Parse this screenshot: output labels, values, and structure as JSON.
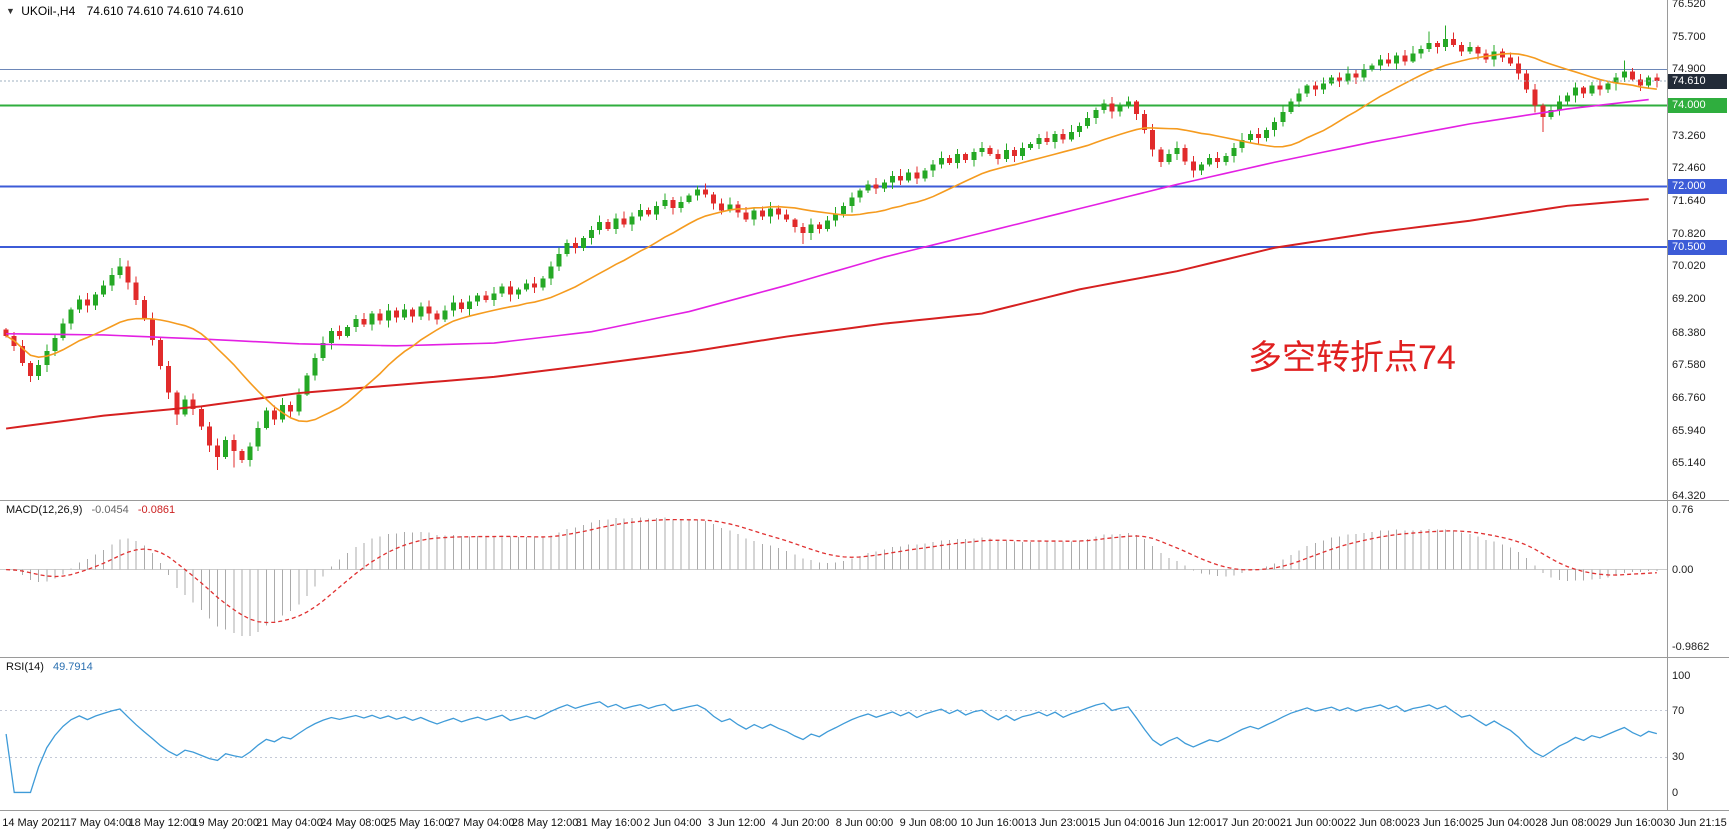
{
  "header": {
    "marker": "▼",
    "title": "UKOil-,H4",
    "ohlc": "74.610 74.610 74.610 74.610"
  },
  "annotation": {
    "text": "多空转折点74",
    "color": "#e02020"
  },
  "chart_data": {
    "type": "candlestick",
    "symbol": "UKOil-",
    "timeframe": "H4",
    "title": "UKOil-,H4",
    "y_range": {
      "max": 76.62,
      "min": 64.23
    },
    "price_axis_labels": [
      "76.520",
      "75.700",
      "74.900",
      "73.260",
      "72.460",
      "71.640",
      "70.820",
      "70.020",
      "69.200",
      "68.380",
      "67.580",
      "66.760",
      "65.940",
      "65.140",
      "64.320"
    ],
    "first_open": 68.45,
    "closes": [
      68.3,
      68.05,
      67.62,
      67.3,
      67.58,
      67.92,
      68.25,
      68.6,
      68.95,
      69.2,
      69.05,
      69.32,
      69.55,
      69.8,
      70.02,
      69.62,
      69.18,
      68.72,
      68.2,
      67.55,
      66.9,
      66.35,
      66.72,
      66.48,
      66.05,
      65.58,
      65.3,
      65.72,
      65.45,
      65.22,
      65.55,
      66.02,
      66.45,
      66.22,
      66.58,
      66.42,
      66.85,
      67.32,
      67.75,
      68.12,
      68.42,
      68.3,
      68.52,
      68.72,
      68.58,
      68.85,
      68.68,
      68.92,
      68.75,
      68.95,
      68.78,
      69.02,
      68.85,
      68.7,
      68.92,
      69.12,
      68.96,
      69.15,
      69.3,
      69.18,
      69.35,
      69.52,
      69.32,
      69.45,
      69.6,
      69.5,
      69.72,
      70.02,
      70.32,
      70.6,
      70.48,
      70.72,
      70.92,
      71.12,
      70.95,
      71.2,
      71.06,
      71.26,
      71.42,
      71.3,
      71.52,
      71.66,
      71.46,
      71.62,
      71.78,
      71.92,
      71.8,
      71.58,
      71.4,
      71.55,
      71.35,
      71.18,
      71.4,
      71.26,
      71.45,
      71.3,
      71.18,
      71.0,
      70.85,
      71.06,
      70.95,
      71.15,
      71.32,
      71.52,
      71.72,
      71.9,
      72.05,
      71.95,
      72.1,
      72.26,
      72.15,
      72.35,
      72.2,
      72.4,
      72.55,
      72.7,
      72.58,
      72.8,
      72.66,
      72.85,
      72.95,
      72.8,
      72.68,
      72.9,
      72.76,
      72.95,
      73.05,
      73.2,
      73.1,
      73.3,
      73.16,
      73.35,
      73.5,
      73.7,
      73.9,
      74.05,
      73.86,
      74.0,
      74.1,
      73.8,
      73.4,
      72.92,
      72.6,
      72.8,
      72.95,
      72.62,
      72.4,
      72.55,
      72.7,
      72.6,
      72.76,
      72.95,
      73.15,
      73.3,
      73.2,
      73.4,
      73.6,
      73.85,
      74.1,
      74.3,
      74.5,
      74.4,
      74.55,
      74.7,
      74.6,
      74.8,
      74.7,
      74.9,
      75.0,
      75.15,
      75.05,
      75.25,
      75.1,
      75.3,
      75.4,
      75.55,
      75.45,
      75.65,
      75.5,
      75.35,
      75.45,
      75.3,
      75.15,
      75.35,
      75.2,
      75.05,
      74.8,
      74.4,
      74.0,
      73.72,
      73.9,
      74.1,
      74.25,
      74.45,
      74.3,
      74.5,
      74.4,
      74.55,
      74.7,
      74.85,
      74.65,
      74.5,
      74.7,
      74.61
    ],
    "wick_high_extra": {
      "14": 0.12,
      "16": 0.1,
      "175": 0.15,
      "177": 0.22,
      "199": 0.1
    },
    "wick_low_extra": {
      "21": 0.15,
      "26": 0.22,
      "28": 0.28,
      "98": 0.18,
      "189": 0.25
    },
    "moving_averages": {
      "fast": {
        "name": "fast-ma",
        "color": "#f59b1f",
        "type": "sma",
        "period": 18
      },
      "medium": {
        "name": "medium-ma",
        "color": "#e320e3",
        "anchor_step": 12,
        "anchors": [
          68.35,
          68.32,
          68.22,
          68.1,
          68.05,
          68.12,
          68.4,
          68.9,
          69.55,
          70.25,
          70.85,
          71.45,
          72.05,
          72.6,
          73.1,
          73.55,
          73.92,
          74.2
        ]
      },
      "slow": {
        "name": "slow-ma",
        "color": "#d62020",
        "anchor_step": 12,
        "anchors": [
          66.0,
          66.32,
          66.55,
          66.88,
          67.08,
          67.28,
          67.58,
          67.9,
          68.28,
          68.6,
          68.85,
          69.45,
          69.9,
          70.48,
          70.85,
          71.15,
          71.52,
          71.72
        ]
      }
    },
    "hlines": [
      {
        "value": 74.9,
        "color": "#6d87b8",
        "width": 1
      },
      {
        "value": 74.0,
        "color": "#2fae3e",
        "width": 2,
        "badge": {
          "text": "74.000",
          "bg": "#2fae3e"
        }
      },
      {
        "value": 72.0,
        "color": "#3c5bd7",
        "width": 2,
        "badge": {
          "text": "72.000",
          "bg": "#3c5bd7"
        }
      },
      {
        "value": 70.5,
        "color": "#3c5bd7",
        "width": 2,
        "badge": {
          "text": "70.500",
          "bg": "#3c5bd7"
        }
      },
      {
        "value": 74.61,
        "color": "#9fb0c2",
        "width": 1,
        "dash": "2 2",
        "front": true,
        "badge": {
          "text": "74.610",
          "bg": "#222b38"
        }
      }
    ],
    "macd": {
      "label": "MACD(12,26,9)",
      "value_main": "-0.0454",
      "value_signal": "-0.0861",
      "params": [
        12,
        26,
        9
      ],
      "axis_labels": [
        {
          "text": "0.76",
          "value": 0.76
        },
        {
          "text": "0.00",
          "value": 0
        },
        {
          "text": "-0.9862",
          "value": -0.9862
        }
      ],
      "range": {
        "max": 0.88,
        "min": -1.12
      },
      "histogram_color": "#ababab",
      "signal_color": "#e03131"
    },
    "rsi": {
      "label": "RSI(14)",
      "value": "49.7914",
      "period": 14,
      "levels": [
        70,
        30
      ],
      "axis_labels": [
        {
          "text": "100",
          "value": 100
        },
        {
          "text": "70",
          "value": 70
        },
        {
          "text": "30",
          "value": 30
        },
        {
          "text": "0",
          "value": 0
        }
      ],
      "range": {
        "max": 115,
        "min": -15
      },
      "line_color": "#3f9bd8"
    },
    "dates": [
      "14 May 2021",
      "17 May 04:00",
      "18 May 12:00",
      "19 May 20:00",
      "21 May 04:00",
      "24 May 08:00",
      "25 May 16:00",
      "27 May 04:00",
      "28 May 12:00",
      "31 May 16:00",
      "2 Jun 04:00",
      "3 Jun 12:00",
      "4 Jun 20:00",
      "8 Jun 00:00",
      "9 Jun 08:00",
      "10 Jun 16:00",
      "13 Jun 23:00",
      "15 Jun 04:00",
      "16 Jun 12:00",
      "17 Jun 20:00",
      "21 Jun 00:00",
      "22 Jun 08:00",
      "23 Jun 16:00",
      "25 Jun 04:00",
      "28 Jun 08:00",
      "29 Jun 16:00",
      "30 Jun 21:15"
    ],
    "colors": {
      "up": "#25a825",
      "down": "#e12b2b"
    }
  }
}
